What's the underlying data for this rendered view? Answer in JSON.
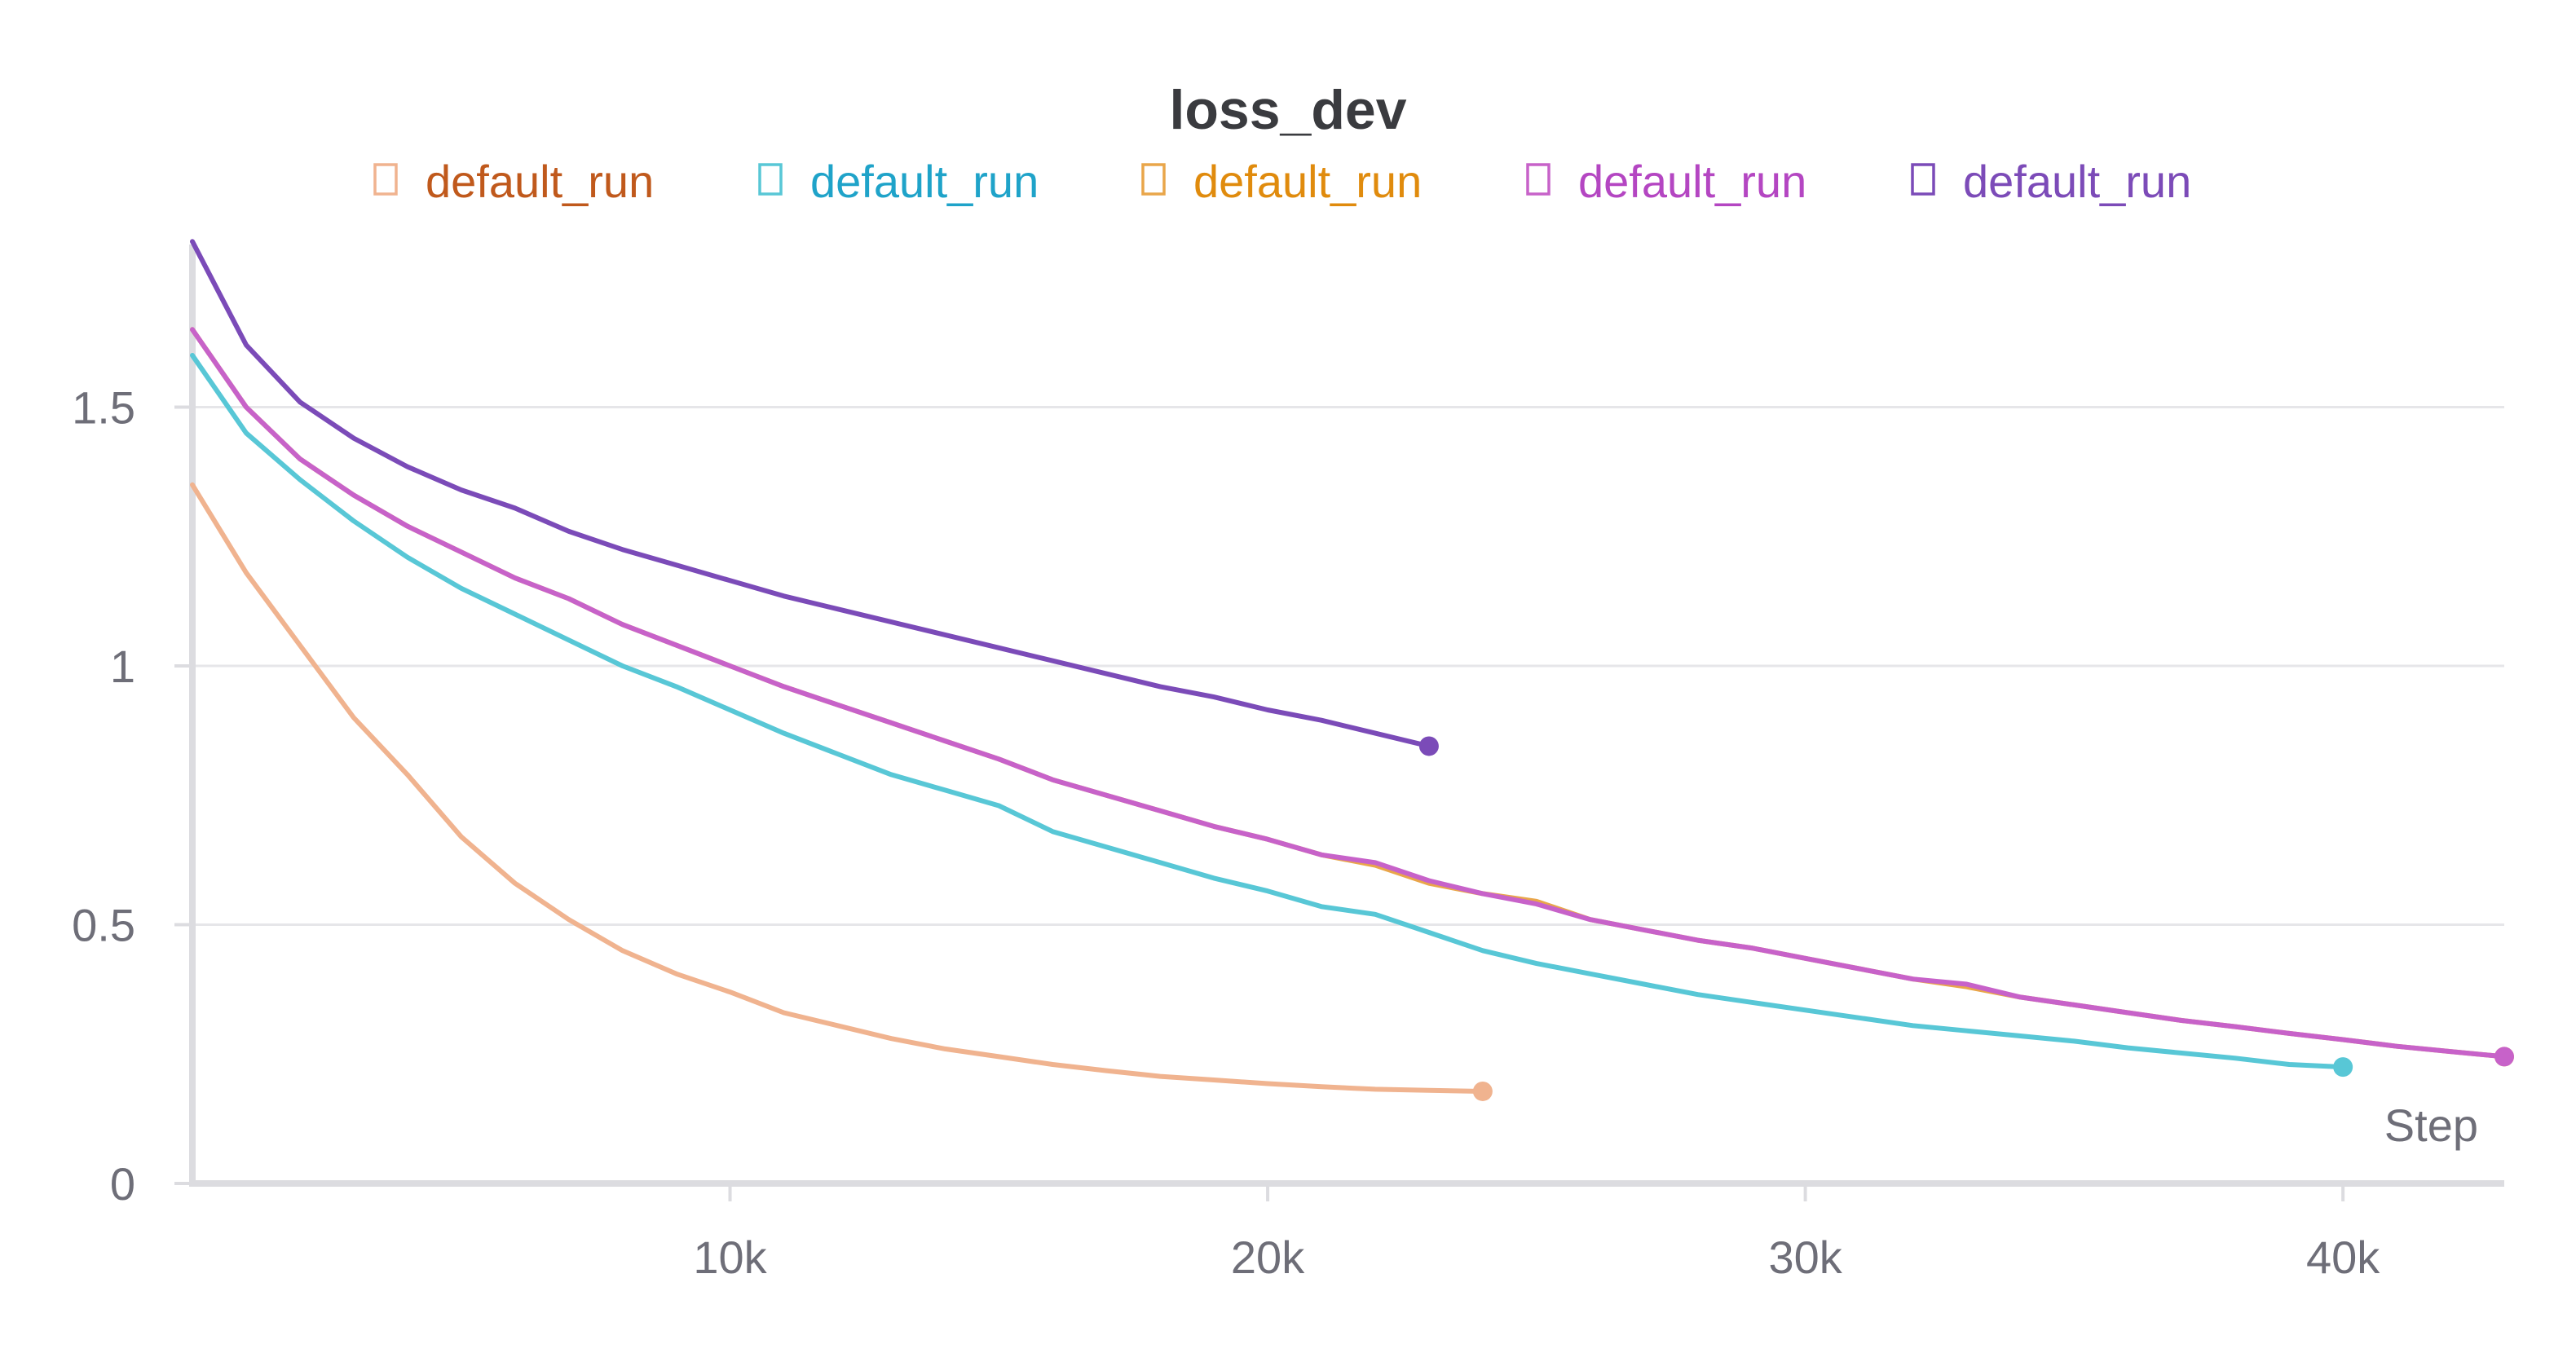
{
  "chart_data": {
    "type": "line",
    "title": "loss_dev",
    "xlabel": "Step",
    "ylabel": "",
    "xlim": [
      0,
      43000
    ],
    "ylim": [
      0,
      1.83
    ],
    "x_ticks": [
      10000,
      20000,
      30000,
      40000
    ],
    "x_tick_labels": [
      "10k",
      "20k",
      "30k",
      "40k"
    ],
    "y_ticks": [
      0,
      0.5,
      1,
      1.5
    ],
    "y_tick_labels": [
      "0",
      "0.5",
      "1",
      "1.5"
    ],
    "grid": true,
    "legend_position": "top",
    "series": [
      {
        "name": "default_run",
        "color": "#f0b38f",
        "legend_text_color": "#c0591c",
        "x": [
          0,
          1000,
          2000,
          3000,
          4000,
          5000,
          6000,
          7000,
          8000,
          9000,
          10000,
          11000,
          12000,
          13000,
          14000,
          15000,
          16000,
          17000,
          18000,
          19000,
          20000,
          21000,
          22000,
          23000,
          24000
        ],
        "y": [
          1.35,
          1.18,
          1.04,
          0.9,
          0.79,
          0.67,
          0.58,
          0.51,
          0.45,
          0.405,
          0.37,
          0.33,
          0.305,
          0.28,
          0.26,
          0.245,
          0.23,
          0.218,
          0.207,
          0.2,
          0.193,
          0.187,
          0.182,
          0.18,
          0.178
        ]
      },
      {
        "name": "default_run",
        "color": "#58c7d6",
        "legend_text_color": "#1fa3c9",
        "x": [
          0,
          1000,
          2000,
          3000,
          4000,
          5000,
          6000,
          7000,
          8000,
          9000,
          10000,
          11000,
          12000,
          13000,
          14000,
          15000,
          16000,
          17000,
          18000,
          19000,
          20000,
          21000,
          22000,
          23000,
          24000,
          25000,
          26000,
          27000,
          28000,
          29000,
          30000,
          31000,
          32000,
          33000,
          34000,
          35000,
          36000,
          37000,
          38000,
          39000,
          40000
        ],
        "y": [
          1.6,
          1.45,
          1.36,
          1.28,
          1.21,
          1.15,
          1.1,
          1.05,
          1.0,
          0.96,
          0.915,
          0.87,
          0.83,
          0.79,
          0.76,
          0.73,
          0.68,
          0.65,
          0.62,
          0.59,
          0.565,
          0.535,
          0.52,
          0.485,
          0.45,
          0.425,
          0.405,
          0.385,
          0.365,
          0.35,
          0.335,
          0.32,
          0.305,
          0.295,
          0.285,
          0.275,
          0.262,
          0.252,
          0.242,
          0.23,
          0.225
        ]
      },
      {
        "name": "default_run",
        "color": "#e9a64a",
        "legend_text_color": "#e08b0d",
        "x": [
          0,
          1000,
          2000,
          3000,
          4000,
          5000,
          6000,
          7000,
          8000,
          9000,
          10000,
          11000,
          12000,
          13000,
          14000,
          15000,
          16000,
          17000,
          18000,
          19000,
          20000,
          21000,
          22000,
          23000,
          24000,
          25000,
          26000,
          27000,
          28000,
          29000,
          30000,
          31000,
          32000,
          33000,
          34000,
          35000,
          36000,
          37000,
          38000,
          39000,
          40000,
          41000,
          42000,
          43000
        ],
        "y": [
          1.65,
          1.5,
          1.4,
          1.33,
          1.27,
          1.22,
          1.17,
          1.13,
          1.08,
          1.04,
          1.0,
          0.96,
          0.925,
          0.89,
          0.855,
          0.82,
          0.78,
          0.75,
          0.72,
          0.69,
          0.665,
          0.635,
          0.615,
          0.58,
          0.56,
          0.545,
          0.51,
          0.49,
          0.47,
          0.455,
          0.435,
          0.415,
          0.395,
          0.38,
          0.36,
          0.345,
          0.33,
          0.315,
          0.303,
          0.29,
          0.278,
          0.265,
          0.255,
          0.245
        ]
      },
      {
        "name": "default_run",
        "color": "#c762c9",
        "legend_text_color": "#b446c2",
        "x": [
          0,
          1000,
          2000,
          3000,
          4000,
          5000,
          6000,
          7000,
          8000,
          9000,
          10000,
          11000,
          12000,
          13000,
          14000,
          15000,
          16000,
          17000,
          18000,
          19000,
          20000,
          21000,
          22000,
          23000,
          24000,
          25000,
          26000,
          27000,
          28000,
          29000,
          30000,
          31000,
          32000,
          33000,
          34000,
          35000,
          36000,
          37000,
          38000,
          39000,
          40000,
          41000,
          42000,
          43000
        ],
        "y": [
          1.65,
          1.5,
          1.4,
          1.33,
          1.27,
          1.22,
          1.17,
          1.13,
          1.08,
          1.04,
          1.0,
          0.96,
          0.925,
          0.89,
          0.855,
          0.82,
          0.78,
          0.75,
          0.72,
          0.69,
          0.665,
          0.635,
          0.62,
          0.585,
          0.56,
          0.54,
          0.51,
          0.49,
          0.47,
          0.455,
          0.435,
          0.415,
          0.395,
          0.385,
          0.36,
          0.345,
          0.33,
          0.315,
          0.303,
          0.29,
          0.278,
          0.265,
          0.255,
          0.245
        ]
      },
      {
        "name": "default_run",
        "color": "#7b4bb8",
        "legend_text_color": "#7c4bb8",
        "x": [
          0,
          1000,
          2000,
          3000,
          4000,
          5000,
          6000,
          7000,
          8000,
          9000,
          10000,
          11000,
          12000,
          13000,
          14000,
          15000,
          16000,
          17000,
          18000,
          19000,
          20000,
          21000,
          22000,
          23000
        ],
        "y": [
          1.82,
          1.62,
          1.51,
          1.44,
          1.385,
          1.34,
          1.305,
          1.26,
          1.225,
          1.195,
          1.165,
          1.135,
          1.11,
          1.085,
          1.06,
          1.035,
          1.01,
          0.985,
          0.96,
          0.94,
          0.915,
          0.895,
          0.87,
          0.845
        ]
      }
    ]
  }
}
